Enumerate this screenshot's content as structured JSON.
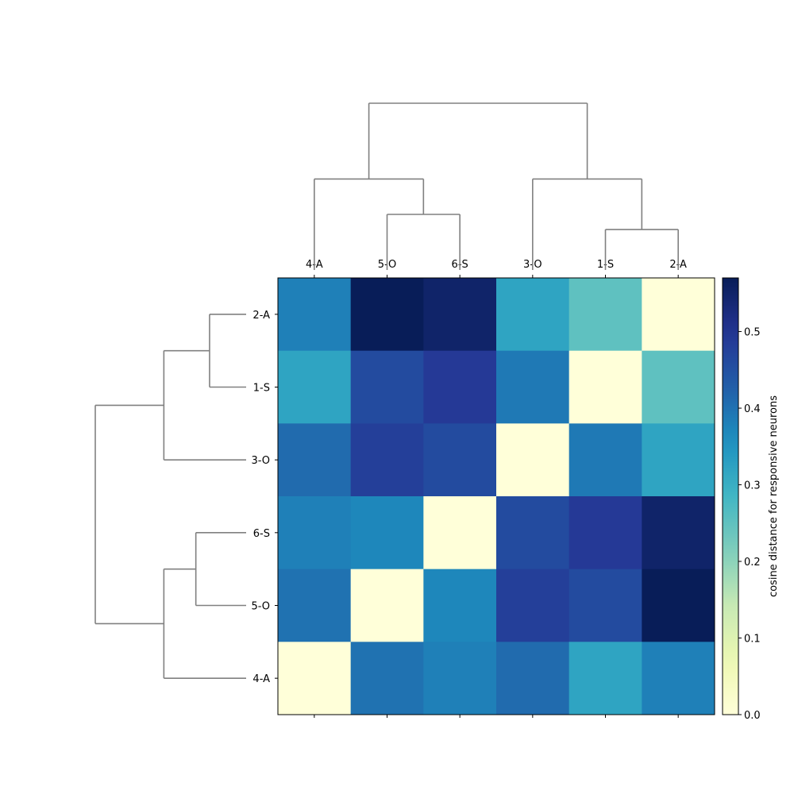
{
  "chart_data": {
    "type": "heatmap",
    "title": "",
    "rows": [
      "2-A",
      "1-S",
      "3-O",
      "6-S",
      "5-O",
      "4-A"
    ],
    "columns": [
      "4-A",
      "5-O",
      "6-S",
      "3-O",
      "1-S",
      "2-A"
    ],
    "values": [
      [
        0.38,
        0.57,
        0.55,
        0.32,
        0.25,
        0.0
      ],
      [
        0.32,
        0.46,
        0.49,
        0.39,
        0.0,
        0.25
      ],
      [
        0.41,
        0.48,
        0.46,
        0.0,
        0.39,
        0.32
      ],
      [
        0.38,
        0.37,
        0.0,
        0.46,
        0.49,
        0.55
      ],
      [
        0.4,
        0.0,
        0.37,
        0.48,
        0.46,
        0.57
      ],
      [
        0.0,
        0.4,
        0.38,
        0.41,
        0.32,
        0.38
      ]
    ],
    "colormap": "YlGnBu",
    "colorbar": {
      "label": "cosine distance for responsive neurons",
      "range": [
        0.0,
        0.57
      ],
      "ticks": [
        "0.0",
        "0.1",
        "0.2",
        "0.3",
        "0.4",
        "0.5"
      ],
      "tick_values": [
        0.0,
        0.1,
        0.2,
        0.3,
        0.4,
        0.5
      ]
    },
    "dendrogram": {
      "color": "#808080",
      "linkage": [
        {
          "members": [
            "1-S",
            "2-A"
          ],
          "height": 0.08
        },
        {
          "members": [
            "5-O",
            "6-S"
          ],
          "height": 0.11
        },
        {
          "members": [
            "4-A",
            "5-O",
            "6-S"
          ],
          "height": 0.18
        },
        {
          "members": [
            "3-O",
            "1-S",
            "2-A"
          ],
          "height": 0.18
        },
        {
          "members": [
            "4-A",
            "5-O",
            "6-S",
            "3-O",
            "1-S",
            "2-A"
          ],
          "height": 0.33
        }
      ]
    }
  }
}
